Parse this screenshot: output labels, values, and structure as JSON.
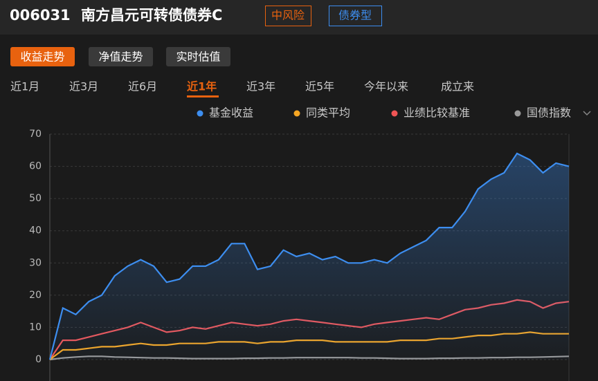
{
  "header": {
    "code": "006031",
    "name": "南方昌元可转债债券C",
    "tags": [
      "中风险",
      "债券型"
    ]
  },
  "tabs": [
    "收益走势",
    "净值走势",
    "实时估值"
  ],
  "periods": [
    "近1月",
    "近3月",
    "近6月",
    "近1年",
    "近3年",
    "近5年",
    "今年以来",
    "成立来"
  ],
  "chart_data": {
    "type": "line",
    "ylim": [
      0,
      70
    ],
    "yticks": [
      0,
      10,
      20,
      30,
      40,
      50,
      60,
      70
    ],
    "grid": true,
    "series": [
      {
        "name": "基金收益",
        "color": "#3d8ef0",
        "area": true,
        "values": [
          0,
          16,
          14,
          18,
          20,
          26,
          29,
          31,
          29,
          24,
          25,
          29,
          29,
          31,
          36,
          36,
          28,
          29,
          34,
          32,
          33,
          31,
          32,
          30,
          30,
          31,
          30,
          33,
          35,
          37,
          41,
          41,
          46,
          53,
          56,
          58,
          64,
          62,
          58,
          61,
          60
        ]
      },
      {
        "name": "同类平均",
        "color": "#f5a623",
        "values": [
          0,
          3,
          3,
          3.5,
          4,
          4,
          4.5,
          5,
          4.5,
          4.5,
          5,
          5,
          5,
          5.5,
          5.5,
          5.5,
          5,
          5.5,
          5.5,
          6,
          6,
          6,
          5.5,
          5.5,
          5.5,
          5.5,
          5.5,
          6,
          6,
          6,
          6.5,
          6.5,
          7,
          7.5,
          7.5,
          8,
          8,
          8.5,
          8,
          8,
          8
        ]
      },
      {
        "name": "业绩比较基准",
        "color": "#f05555",
        "values": [
          0,
          6,
          6,
          7,
          8,
          9,
          10,
          11.5,
          10,
          8.5,
          9,
          10,
          9.5,
          10.5,
          11.5,
          11,
          10.5,
          11,
          12,
          12.5,
          12,
          11.5,
          11,
          10.5,
          10,
          11,
          11.5,
          12,
          12.5,
          13,
          12.5,
          14,
          15.5,
          16,
          17,
          17.5,
          18.5,
          18,
          16,
          17.5,
          18
        ]
      },
      {
        "name": "国债指数",
        "color": "#9a9a9a",
        "values": [
          0,
          0.5,
          0.8,
          1,
          1,
          0.8,
          0.7,
          0.6,
          0.5,
          0.5,
          0.4,
          0.3,
          0.3,
          0.3,
          0.3,
          0.4,
          0.4,
          0.5,
          0.5,
          0.6,
          0.6,
          0.6,
          0.6,
          0.6,
          0.5,
          0.5,
          0.4,
          0.3,
          0.3,
          0.3,
          0.4,
          0.4,
          0.5,
          0.5,
          0.6,
          0.6,
          0.7,
          0.7,
          0.8,
          0.9,
          1
        ]
      }
    ]
  }
}
